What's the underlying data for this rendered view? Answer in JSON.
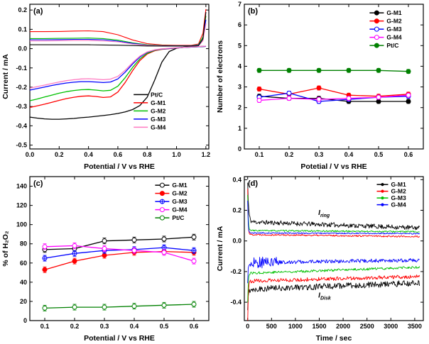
{
  "figure_name": "four-panel electrochemistry figure",
  "chart_data": [
    {
      "panel": "(a)",
      "type": "line",
      "xlabel": "Potential / V vs RHE",
      "ylabel": "Current / mA",
      "xlim": [
        0,
        1.22
      ],
      "ylim": [
        -0.52,
        0.23
      ],
      "xticks": [
        0.0,
        0.2,
        0.4,
        0.6,
        0.8,
        1.0,
        1.2
      ],
      "xticklabels": [
        "0.0",
        "0.2",
        "0.4",
        "0.6",
        "0.8",
        "1.0",
        "1.2"
      ],
      "yticks": [
        0.2,
        0.1,
        0.0,
        -0.1,
        -0.2,
        -0.3,
        -0.4,
        -0.5
      ],
      "yticklabels": [
        "0.2",
        "0.1",
        "0.0",
        "-0.1",
        "-0.2",
        "-0.3",
        "-0.4",
        "-0.5"
      ],
      "legend": {
        "x": 0.58,
        "y": 0.6,
        "row": 11.5,
        "line": 20,
        "entries": [
          0,
          1,
          2,
          3,
          4
        ]
      },
      "series": [
        {
          "name": "Pt/C",
          "color": "#000000",
          "x": [
            0,
            0.05,
            0.1,
            0.15,
            0.2,
            0.25,
            0.3,
            0.35,
            0.4,
            0.45,
            0.5,
            0.55,
            0.6,
            0.65,
            0.7,
            0.75,
            0.8,
            0.85,
            0.9,
            0.95,
            1.0,
            1.05,
            1.1,
            1.15,
            1.2
          ],
          "y": [
            -0.355,
            -0.36,
            -0.364,
            -0.366,
            -0.366,
            -0.364,
            -0.362,
            -0.358,
            -0.355,
            -0.351,
            -0.347,
            -0.342,
            -0.336,
            -0.328,
            -0.316,
            -0.295,
            -0.252,
            -0.165,
            -0.07,
            -0.015,
            0.002,
            0.008,
            0.01,
            0.011,
            0.012
          ]
        },
        {
          "name": "G-M1",
          "color": "#ff0000",
          "x": [
            0,
            0.05,
            0.1,
            0.15,
            0.2,
            0.25,
            0.3,
            0.35,
            0.4,
            0.45,
            0.5,
            0.55,
            0.6,
            0.65,
            0.7,
            0.75,
            0.8,
            0.85,
            0.9,
            0.95,
            1.0,
            1.05,
            1.1,
            1.15,
            1.2
          ],
          "y": [
            -0.305,
            -0.297,
            -0.288,
            -0.278,
            -0.268,
            -0.259,
            -0.252,
            -0.247,
            -0.245,
            -0.248,
            -0.253,
            -0.25,
            -0.225,
            -0.175,
            -0.115,
            -0.062,
            -0.028,
            -0.011,
            -0.004,
            0,
            0.003,
            0.006,
            0.008,
            0.01,
            0.012
          ]
        },
        {
          "name": "G-M2",
          "color": "#00c000",
          "x": [
            0,
            0.05,
            0.1,
            0.15,
            0.2,
            0.25,
            0.3,
            0.35,
            0.4,
            0.45,
            0.5,
            0.55,
            0.6,
            0.65,
            0.7,
            0.75,
            0.8,
            0.85,
            0.9,
            0.95,
            1.0,
            1.05,
            1.1,
            1.15,
            1.2
          ],
          "y": [
            -0.27,
            -0.261,
            -0.251,
            -0.241,
            -0.231,
            -0.223,
            -0.217,
            -0.213,
            -0.212,
            -0.215,
            -0.219,
            -0.216,
            -0.195,
            -0.15,
            -0.098,
            -0.053,
            -0.024,
            -0.009,
            -0.003,
            0.001,
            0.004,
            0.006,
            0.008,
            0.01,
            0.012
          ]
        },
        {
          "name": "G-M3",
          "color": "#0000ff",
          "x": [
            0,
            0.05,
            0.1,
            0.15,
            0.2,
            0.25,
            0.3,
            0.35,
            0.4,
            0.45,
            0.5,
            0.55,
            0.6,
            0.65,
            0.7,
            0.75,
            0.8,
            0.85,
            0.9,
            0.95,
            1.0,
            1.05,
            1.1,
            1.15,
            1.2
          ],
          "y": [
            -0.215,
            -0.207,
            -0.199,
            -0.191,
            -0.184,
            -0.178,
            -0.174,
            -0.171,
            -0.171,
            -0.173,
            -0.176,
            -0.173,
            -0.157,
            -0.122,
            -0.08,
            -0.043,
            -0.019,
            -0.007,
            -0.002,
            0.001,
            0.004,
            0.006,
            0.008,
            0.01,
            0.012
          ]
        },
        {
          "name": "G-M4",
          "color": "#ff7bc1",
          "x": [
            0,
            0.05,
            0.1,
            0.15,
            0.2,
            0.25,
            0.3,
            0.35,
            0.4,
            0.45,
            0.5,
            0.55,
            0.6,
            0.65,
            0.7,
            0.75,
            0.8,
            0.85,
            0.9,
            0.95,
            1.0,
            1.05,
            1.1,
            1.15,
            1.2
          ],
          "y": [
            -0.205,
            -0.197,
            -0.189,
            -0.181,
            -0.173,
            -0.166,
            -0.161,
            -0.157,
            -0.156,
            -0.158,
            -0.161,
            -0.158,
            -0.144,
            -0.112,
            -0.073,
            -0.039,
            -0.017,
            -0.006,
            -0.001,
            0.002,
            0.005,
            0.007,
            0.009,
            0.011,
            0.013
          ]
        },
        {
          "color": "#ff0000",
          "width": 1.1,
          "x": [
            0,
            0.1,
            0.2,
            0.3,
            0.4,
            0.5,
            0.6,
            0.7,
            0.8,
            0.9,
            1.0,
            1.1,
            1.15,
            1.18,
            1.2
          ],
          "y": [
            0.088,
            0.088,
            0.089,
            0.091,
            0.092,
            0.088,
            0.072,
            0.045,
            0.026,
            0.019,
            0.017,
            0.017,
            0.024,
            0.08,
            0.205
          ]
        },
        {
          "color": "#00c000",
          "width": 1.1,
          "x": [
            0,
            0.1,
            0.2,
            0.3,
            0.4,
            0.5,
            0.6,
            0.7,
            0.8,
            0.9,
            1.0,
            1.1,
            1.15,
            1.18,
            1.2
          ],
          "y": [
            0.052,
            0.052,
            0.053,
            0.054,
            0.055,
            0.052,
            0.044,
            0.03,
            0.02,
            0.016,
            0.015,
            0.015,
            0.02,
            0.06,
            0.17
          ]
        },
        {
          "color": "#0000ff",
          "width": 1.1,
          "x": [
            0,
            0.1,
            0.2,
            0.3,
            0.4,
            0.5,
            0.6,
            0.7,
            0.8,
            0.9,
            1.0,
            1.1,
            1.15,
            1.18,
            1.2
          ],
          "y": [
            0.046,
            0.046,
            0.047,
            0.048,
            0.048,
            0.046,
            0.039,
            0.027,
            0.018,
            0.015,
            0.014,
            0.014,
            0.018,
            0.05,
            0.15
          ]
        },
        {
          "color": "#ff7bc1",
          "width": 1.1,
          "x": [
            0,
            0.1,
            0.2,
            0.3,
            0.4,
            0.5,
            0.6,
            0.7,
            0.8,
            0.9,
            1.0,
            1.1,
            1.15,
            1.18,
            1.2
          ],
          "y": [
            0.04,
            0.04,
            0.041,
            0.042,
            0.042,
            0.04,
            0.035,
            0.024,
            0.017,
            0.014,
            0.013,
            0.013,
            0.016,
            0.04,
            0.13
          ]
        },
        {
          "color": "#000000",
          "width": 1.1,
          "x": [
            0,
            0.1,
            0.2,
            0.3,
            0.4,
            0.5,
            0.6,
            0.7,
            0.8,
            0.9,
            1.0,
            1.1,
            1.15,
            1.18,
            1.2
          ],
          "y": [
            0.02,
            0.02,
            0.02,
            0.02,
            0.02,
            0.019,
            0.018,
            0.016,
            0.014,
            0.013,
            0.013,
            0.013,
            0.015,
            0.05,
            0.19
          ]
        }
      ]
    },
    {
      "panel": "(b)",
      "type": "line",
      "xlabel": "Potetial / V vs  RHE",
      "ylabel": "Number of electrons",
      "xlim": [
        0.05,
        0.65
      ],
      "ylim": [
        0,
        7
      ],
      "xticks": [
        0.1,
        0.2,
        0.3,
        0.4,
        0.5,
        0.6
      ],
      "xticklabels": [
        "0.1",
        "0.2",
        "0.3",
        "0.4",
        "0.5",
        "0.6"
      ],
      "yticks": [
        0,
        1,
        2,
        3,
        4,
        5,
        6,
        7
      ],
      "yticklabels": [
        "0",
        "1",
        "2",
        "3",
        "4",
        "5",
        "6",
        "7"
      ],
      "legend": {
        "x": 0.7,
        "y": 0.035,
        "row": 11.5,
        "line": 20,
        "entries": [
          0,
          1,
          2,
          3,
          4
        ]
      },
      "series": [
        {
          "name": "G-M1",
          "color": "#000000",
          "mfill": "#000000",
          "marker": true,
          "msize": 3,
          "err": 0.1,
          "x": [
            0.1,
            0.2,
            0.3,
            0.4,
            0.5,
            0.6
          ],
          "y": [
            2.55,
            2.45,
            2.45,
            2.3,
            2.3,
            2.3
          ]
        },
        {
          "name": "G-M2",
          "color": "#ff0000",
          "mfill": "#ff0000",
          "marker": true,
          "msize": 3,
          "err": 0.1,
          "x": [
            0.1,
            0.2,
            0.3,
            0.4,
            0.5,
            0.6
          ],
          "y": [
            2.9,
            2.65,
            2.95,
            2.6,
            2.55,
            2.65
          ]
        },
        {
          "name": "G-M3",
          "color": "#0000ff",
          "mfill": "#ffffff",
          "marker": true,
          "msize": 3,
          "err": 0.1,
          "x": [
            0.1,
            0.2,
            0.3,
            0.4,
            0.5,
            0.6
          ],
          "y": [
            2.5,
            2.7,
            2.3,
            2.4,
            2.5,
            2.55
          ]
        },
        {
          "name": "G-M4",
          "color": "#ff00ff",
          "mfill": "#ffffff",
          "marker": true,
          "msize": 3,
          "err": 0.1,
          "x": [
            0.1,
            0.2,
            0.3,
            0.4,
            0.5,
            0.6
          ],
          "y": [
            2.35,
            2.45,
            2.4,
            2.45,
            2.5,
            2.6
          ]
        },
        {
          "name": "Pt/C",
          "color": "#008000",
          "mfill": "#008000",
          "marker": true,
          "msize": 3,
          "err": 0.1,
          "x": [
            0.1,
            0.2,
            0.3,
            0.4,
            0.5,
            0.6
          ],
          "y": [
            3.8,
            3.8,
            3.8,
            3.8,
            3.8,
            3.75
          ]
        }
      ]
    },
    {
      "panel": "(c)",
      "type": "line",
      "xlabel": "Potential / V vs  RHE",
      "ylabel": "% of H₂O₂",
      "xlim": [
        0.05,
        0.65
      ],
      "ylim": [
        0,
        150
      ],
      "xticks": [
        0.1,
        0.2,
        0.3,
        0.4,
        0.5,
        0.6
      ],
      "xticklabels": [
        "0.1",
        "0.2",
        "0.3",
        "0.4",
        "0.5",
        "0.6"
      ],
      "yticks": [
        0,
        20,
        40,
        60,
        80,
        100,
        120,
        140
      ],
      "yticklabels": [
        "0",
        "20",
        "40",
        "60",
        "80",
        "100",
        "120",
        "140"
      ],
      "legend": {
        "x": 0.7,
        "y": 0.035,
        "row": 11.5,
        "line": 20,
        "entries": [
          0,
          1,
          2,
          3,
          4
        ]
      },
      "series": [
        {
          "name": "G-M1",
          "color": "#000000",
          "mfill": "#ffffff",
          "marker": true,
          "msize": 3,
          "err": 3,
          "x": [
            0.1,
            0.2,
            0.3,
            0.4,
            0.5,
            0.6
          ],
          "y": [
            74,
            75,
            83,
            84,
            85,
            87
          ]
        },
        {
          "name": "G-M2",
          "color": "#ff0000",
          "mfill": "#ff0000",
          "marker": true,
          "msize": 3,
          "err": 3,
          "x": [
            0.1,
            0.2,
            0.3,
            0.4,
            0.5,
            0.6
          ],
          "y": [
            53,
            62,
            68,
            71,
            72,
            71
          ]
        },
        {
          "name": "G-M3",
          "color": "#0000ff",
          "mfill": "#ffffff",
          "mplus": true,
          "marker": true,
          "msize": 3,
          "err": 3,
          "x": [
            0.1,
            0.2,
            0.3,
            0.4,
            0.5,
            0.6
          ],
          "y": [
            65,
            70,
            73,
            74,
            76,
            73
          ]
        },
        {
          "name": "G-M4",
          "color": "#ff00ff",
          "mfill": "#ffffff",
          "marker": true,
          "msize": 3,
          "err": 3,
          "x": [
            0.1,
            0.2,
            0.3,
            0.4,
            0.5,
            0.6
          ],
          "y": [
            77,
            78,
            75,
            73,
            71,
            62
          ]
        },
        {
          "name": "Pt/C",
          "color": "#008000",
          "mfill": "#ffffff",
          "marker": true,
          "msize": 3,
          "err": 3,
          "x": [
            0.1,
            0.2,
            0.3,
            0.4,
            0.5,
            0.6
          ],
          "y": [
            13,
            14,
            14,
            15,
            16,
            17
          ]
        }
      ]
    },
    {
      "panel": "(d)",
      "type": "line",
      "xlabel": "Time / sec",
      "ylabel": "Current / mA",
      "xlim": [
        -70,
        3680
      ],
      "ylim": [
        -0.52,
        0.42
      ],
      "xticks": [
        0,
        500,
        1000,
        1500,
        2000,
        2500,
        3000,
        3500
      ],
      "xticklabels": [
        "0",
        "500",
        "1000",
        "1500",
        "2000",
        "2500",
        "3000",
        "3500"
      ],
      "yticks": [
        0.4,
        0.2,
        0.0,
        -0.2,
        -0.4
      ],
      "yticklabels": [
        "0.4",
        "0.2",
        "0.0",
        "-0.2",
        "-0.4"
      ],
      "legend": {
        "x": 0.74,
        "y": 0.03,
        "row": 9.5,
        "line": 16,
        "entries": [
          0,
          1,
          2,
          3
        ]
      },
      "annotations": [
        {
          "text": "I",
          "sub": "ring",
          "x": 1480,
          "y": 0.17
        },
        {
          "text": "I",
          "sub": "Disk",
          "x": 1480,
          "y": -0.37
        }
      ],
      "series": [
        {
          "name": "G-M1",
          "color": "#000000",
          "width": 0.9,
          "lmark": true,
          "lsize": 1.6,
          "gen": {
            "y0": 0.125,
            "y1": 0.085,
            "noise": 0.015,
            "spike": 0.38,
            "tau": 20,
            "tmax": 3600,
            "step": 12,
            "seed": 11
          }
        },
        {
          "name": "G-M2",
          "color": "#ff0000",
          "width": 0.9,
          "lmark": true,
          "lsize": 1.6,
          "gen": {
            "y0": 0.042,
            "y1": 0.028,
            "noise": 0.005,
            "spike": 0.34,
            "tau": 10,
            "tmax": 3600,
            "step": 12,
            "seed": 22
          }
        },
        {
          "name": "G-M3",
          "color": "#00c000",
          "width": 0.9,
          "lmark": true,
          "lsize": 1.6,
          "gen": {
            "y0": 0.068,
            "y1": 0.06,
            "noise": 0.005,
            "spike": 0.3,
            "tau": 12,
            "tmax": 3600,
            "step": 12,
            "seed": 33
          }
        },
        {
          "name": "G-M4",
          "color": "#0000ff",
          "width": 0.9,
          "lmark": true,
          "lsize": 1.6,
          "gen": {
            "y0": 0.052,
            "y1": 0.048,
            "noise": 0.004,
            "spike": 0.26,
            "tau": 10,
            "tmax": 3600,
            "step": 12,
            "seed": 44
          }
        },
        {
          "color": "#000000",
          "width": 0.9,
          "gen": {
            "y0": -0.315,
            "y1": -0.275,
            "noise": 0.02,
            "spike": -0.45,
            "tau": 15,
            "tmax": 3600,
            "step": 12,
            "seed": 55
          }
        },
        {
          "color": "#ff0000",
          "width": 0.9,
          "gen": {
            "y0": -0.262,
            "y1": -0.232,
            "noise": 0.012,
            "spike": -0.52,
            "tau": 12,
            "tmax": 3600,
            "step": 12,
            "seed": 66
          }
        },
        {
          "color": "#00c000",
          "width": 0.9,
          "gen": {
            "y0": -0.21,
            "y1": -0.172,
            "noise": 0.008,
            "spike": -0.4,
            "tau": 12,
            "tmax": 3600,
            "step": 12,
            "seed": 77
          }
        },
        {
          "color": "#0000ff",
          "width": 0.9,
          "gen": {
            "y0": -0.142,
            "y1": -0.125,
            "noise": 0.012,
            "noise2": 3,
            "noise2_until": 650,
            "spike": -0.3,
            "tau": 10,
            "tmax": 3600,
            "step": 12,
            "seed": 88
          }
        }
      ]
    }
  ]
}
